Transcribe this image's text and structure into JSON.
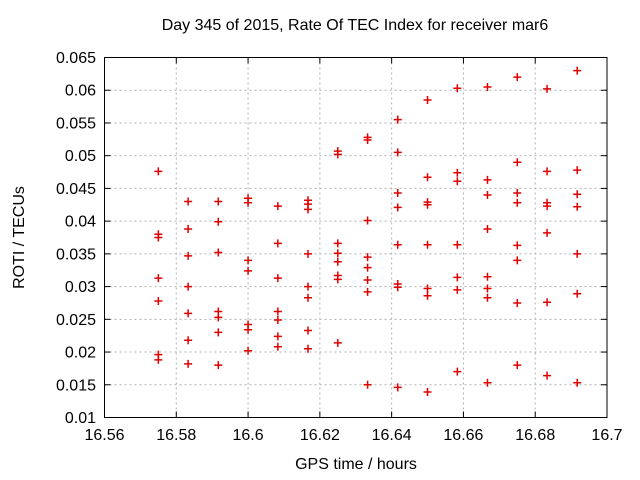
{
  "chart_data": {
    "type": "scatter",
    "title": "Day 345 of 2015, Rate Of TEC Index for receiver mar6",
    "xlabel": "GPS time / hours",
    "ylabel": "ROTI / TECUs",
    "xlim": [
      16.56,
      16.7
    ],
    "ylim": [
      0.01,
      0.065
    ],
    "grid": true,
    "legend": "none",
    "xticks": [
      {
        "v": 16.56,
        "label": "16.56"
      },
      {
        "v": 16.58,
        "label": "16.58"
      },
      {
        "v": 16.6,
        "label": "16.6"
      },
      {
        "v": 16.62,
        "label": "16.62"
      },
      {
        "v": 16.64,
        "label": "16.64"
      },
      {
        "v": 16.66,
        "label": "16.66"
      },
      {
        "v": 16.68,
        "label": "16.68"
      },
      {
        "v": 16.7,
        "label": "16.7"
      }
    ],
    "yticks": [
      {
        "v": 0.01,
        "label": "0.01"
      },
      {
        "v": 0.015,
        "label": "0.015"
      },
      {
        "v": 0.02,
        "label": "0.02"
      },
      {
        "v": 0.025,
        "label": "0.025"
      },
      {
        "v": 0.03,
        "label": "0.03"
      },
      {
        "v": 0.035,
        "label": "0.035"
      },
      {
        "v": 0.04,
        "label": "0.04"
      },
      {
        "v": 0.045,
        "label": "0.045"
      },
      {
        "v": 0.05,
        "label": "0.05"
      },
      {
        "v": 0.055,
        "label": "0.055"
      },
      {
        "v": 0.06,
        "label": "0.06"
      },
      {
        "v": 0.065,
        "label": "0.065"
      }
    ],
    "colors": {
      "marker": "#e10000",
      "grid": "#b0b0b0",
      "axis": "#000000",
      "background": "#ffffff"
    },
    "marker": {
      "glyph": "plus",
      "half_size": 4,
      "stroke_width": 1.5
    },
    "series": [
      {
        "name": "ROTI",
        "points": [
          [
            16.575,
            0.0476
          ],
          [
            16.575,
            0.038
          ],
          [
            16.575,
            0.0375
          ],
          [
            16.575,
            0.0313
          ],
          [
            16.575,
            0.0278
          ],
          [
            16.575,
            0.0196
          ],
          [
            16.575,
            0.0188
          ],
          [
            16.5833,
            0.043
          ],
          [
            16.5833,
            0.0388
          ],
          [
            16.5833,
            0.0347
          ],
          [
            16.5833,
            0.03
          ],
          [
            16.5833,
            0.0259
          ],
          [
            16.5833,
            0.0218
          ],
          [
            16.5833,
            0.0182
          ],
          [
            16.5917,
            0.043
          ],
          [
            16.5917,
            0.0399
          ],
          [
            16.5917,
            0.0352
          ],
          [
            16.5917,
            0.0262
          ],
          [
            16.5917,
            0.0253
          ],
          [
            16.5917,
            0.023
          ],
          [
            16.5917,
            0.018
          ],
          [
            16.6,
            0.0435
          ],
          [
            16.6,
            0.0428
          ],
          [
            16.6,
            0.034
          ],
          [
            16.6,
            0.0324
          ],
          [
            16.6,
            0.0242
          ],
          [
            16.6,
            0.0234
          ],
          [
            16.6,
            0.0202
          ],
          [
            16.6083,
            0.0423
          ],
          [
            16.6083,
            0.0366
          ],
          [
            16.6083,
            0.0313
          ],
          [
            16.6083,
            0.0262
          ],
          [
            16.6083,
            0.0249
          ],
          [
            16.6083,
            0.0224
          ],
          [
            16.6083,
            0.0208
          ],
          [
            16.6167,
            0.0432
          ],
          [
            16.6167,
            0.0426
          ],
          [
            16.6167,
            0.0418
          ],
          [
            16.6167,
            0.035
          ],
          [
            16.6167,
            0.03
          ],
          [
            16.6167,
            0.0283
          ],
          [
            16.6167,
            0.0233
          ],
          [
            16.6167,
            0.0205
          ],
          [
            16.625,
            0.0507
          ],
          [
            16.625,
            0.0502
          ],
          [
            16.625,
            0.0366
          ],
          [
            16.625,
            0.0351
          ],
          [
            16.625,
            0.0338
          ],
          [
            16.625,
            0.0317
          ],
          [
            16.625,
            0.0311
          ],
          [
            16.625,
            0.0214
          ],
          [
            16.6333,
            0.0528
          ],
          [
            16.6333,
            0.0524
          ],
          [
            16.6333,
            0.0401
          ],
          [
            16.6333,
            0.0345
          ],
          [
            16.6333,
            0.0329
          ],
          [
            16.6333,
            0.031
          ],
          [
            16.6333,
            0.0292
          ],
          [
            16.6333,
            0.015
          ],
          [
            16.6417,
            0.0555
          ],
          [
            16.6417,
            0.0505
          ],
          [
            16.6417,
            0.0443
          ],
          [
            16.6417,
            0.0421
          ],
          [
            16.6417,
            0.0364
          ],
          [
            16.6417,
            0.0304
          ],
          [
            16.6417,
            0.0299
          ],
          [
            16.6417,
            0.0146
          ],
          [
            16.65,
            0.0585
          ],
          [
            16.65,
            0.0467
          ],
          [
            16.65,
            0.0429
          ],
          [
            16.65,
            0.0425
          ],
          [
            16.65,
            0.0364
          ],
          [
            16.65,
            0.0297
          ],
          [
            16.65,
            0.0286
          ],
          [
            16.65,
            0.0139
          ],
          [
            16.6583,
            0.0603
          ],
          [
            16.6583,
            0.0474
          ],
          [
            16.6583,
            0.0461
          ],
          [
            16.6583,
            0.0364
          ],
          [
            16.6583,
            0.0314
          ],
          [
            16.6583,
            0.0295
          ],
          [
            16.6583,
            0.017
          ],
          [
            16.6667,
            0.0605
          ],
          [
            16.6667,
            0.0463
          ],
          [
            16.6667,
            0.044
          ],
          [
            16.6667,
            0.0388
          ],
          [
            16.6667,
            0.0315
          ],
          [
            16.6667,
            0.0297
          ],
          [
            16.6667,
            0.0283
          ],
          [
            16.6667,
            0.0153
          ],
          [
            16.675,
            0.062
          ],
          [
            16.675,
            0.049
          ],
          [
            16.675,
            0.0443
          ],
          [
            16.675,
            0.0428
          ],
          [
            16.675,
            0.0363
          ],
          [
            16.675,
            0.034
          ],
          [
            16.675,
            0.0275
          ],
          [
            16.675,
            0.018
          ],
          [
            16.6833,
            0.0602
          ],
          [
            16.6833,
            0.0476
          ],
          [
            16.6833,
            0.0428
          ],
          [
            16.6833,
            0.0423
          ],
          [
            16.6833,
            0.0382
          ],
          [
            16.6833,
            0.0276
          ],
          [
            16.6833,
            0.0164
          ],
          [
            16.6917,
            0.063
          ],
          [
            16.6917,
            0.0478
          ],
          [
            16.6917,
            0.0441
          ],
          [
            16.6917,
            0.0422
          ],
          [
            16.6917,
            0.035
          ],
          [
            16.6917,
            0.0289
          ],
          [
            16.6917,
            0.0153
          ]
        ]
      }
    ]
  }
}
